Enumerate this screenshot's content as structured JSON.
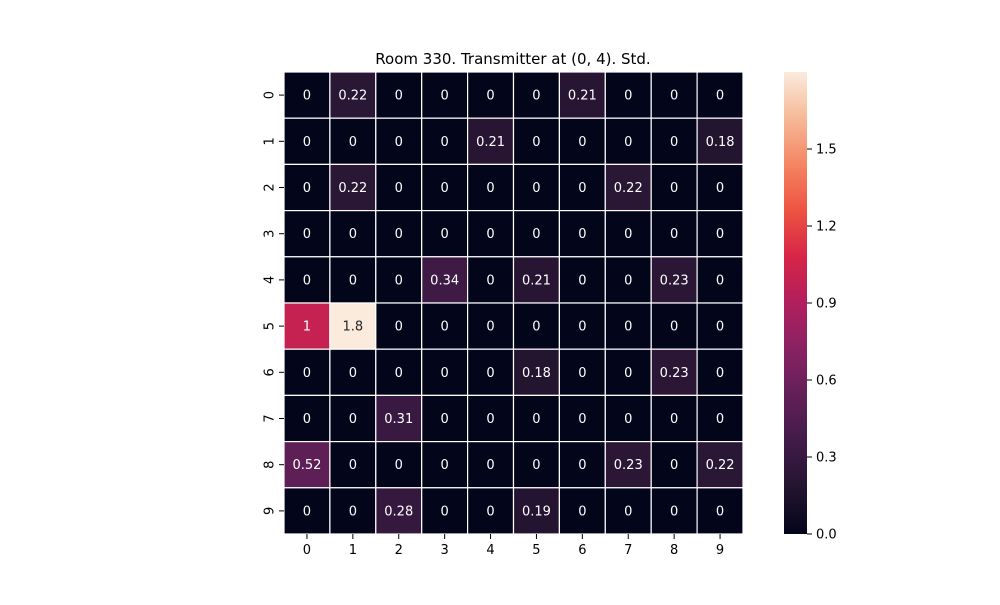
{
  "chart_data": {
    "type": "heatmap",
    "title": "Room 330. Transmitter at (0, 4). Std.",
    "xlabel": "",
    "ylabel": "",
    "x_ticks": [
      "0",
      "1",
      "2",
      "3",
      "4",
      "5",
      "6",
      "7",
      "8",
      "9"
    ],
    "y_ticks": [
      "0",
      "1",
      "2",
      "3",
      "4",
      "5",
      "6",
      "7",
      "8",
      "9"
    ],
    "values": [
      [
        0,
        0.22,
        0,
        0,
        0,
        0,
        0.21,
        0,
        0,
        0
      ],
      [
        0,
        0,
        0,
        0,
        0.21,
        0,
        0,
        0,
        0,
        0.18
      ],
      [
        0,
        0.22,
        0,
        0,
        0,
        0,
        0,
        0.22,
        0,
        0
      ],
      [
        0,
        0,
        0,
        0,
        0,
        0,
        0,
        0,
        0,
        0
      ],
      [
        0,
        0,
        0,
        0.34,
        0,
        0.21,
        0,
        0,
        0.23,
        0
      ],
      [
        1,
        1.8,
        0,
        0,
        0,
        0,
        0,
        0,
        0,
        0
      ],
      [
        0,
        0,
        0,
        0,
        0,
        0.18,
        0,
        0,
        0.23,
        0
      ],
      [
        0,
        0,
        0.31,
        0,
        0,
        0,
        0,
        0,
        0,
        0
      ],
      [
        0.52,
        0,
        0,
        0,
        0,
        0,
        0,
        0.23,
        0,
        0.22
      ],
      [
        0,
        0,
        0.28,
        0,
        0,
        0.19,
        0,
        0,
        0,
        0
      ]
    ],
    "colorbar": {
      "min": 0,
      "max": 1.8,
      "ticks": [
        0.0,
        0.3,
        0.6,
        0.9,
        1.2,
        1.5
      ],
      "tick_labels": [
        "0.0",
        "0.3",
        "0.6",
        "0.9",
        "1.2",
        "1.5"
      ],
      "colormap": "rocket"
    },
    "grid": false,
    "cell_separator_color": "#ffffff"
  }
}
